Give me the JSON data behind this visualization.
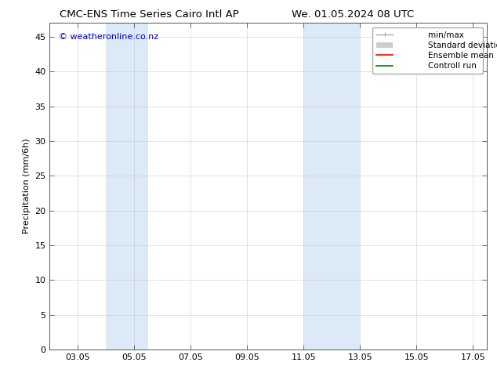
{
  "title": "CMC-ENS Time Series Cairo Intl AP",
  "title2": "We. 01.05.2024 08 UTC",
  "ylabel": "Precipitation (mm/6h)",
  "watermark": "© weatheronline.co.nz",
  "xlim_left": 2.0,
  "xlim_right": 17.5,
  "ylim_bottom": 0,
  "ylim_top": 47,
  "yticks": [
    0,
    5,
    10,
    15,
    20,
    25,
    30,
    35,
    40,
    45
  ],
  "xtick_labels": [
    "03.05",
    "05.05",
    "07.05",
    "09.05",
    "11.05",
    "13.05",
    "15.05",
    "17.05"
  ],
  "xtick_positions": [
    3.0,
    5.0,
    7.0,
    9.0,
    11.0,
    13.0,
    15.0,
    17.0
  ],
  "shaded_regions": [
    [
      4.0,
      5.0
    ],
    [
      5.0,
      5.5
    ],
    [
      11.0,
      12.0
    ],
    [
      12.0,
      13.0
    ]
  ],
  "shaded_color": "#dce9f7",
  "background_color": "#ffffff",
  "grid_color": "#cccccc",
  "legend_items": [
    {
      "label": "min/max",
      "color": "#aaaaaa",
      "lw": 1.0
    },
    {
      "label": "Standard deviation",
      "color": "#cccccc",
      "lw": 6
    },
    {
      "label": "Ensemble mean run",
      "color": "#ff0000",
      "lw": 1.2
    },
    {
      "label": "Controll run",
      "color": "#008000",
      "lw": 1.2
    }
  ],
  "watermark_color": "#0000cc",
  "title_fontsize": 9.5,
  "ylabel_fontsize": 8,
  "tick_fontsize": 8,
  "legend_fontsize": 7.5,
  "watermark_fontsize": 8
}
